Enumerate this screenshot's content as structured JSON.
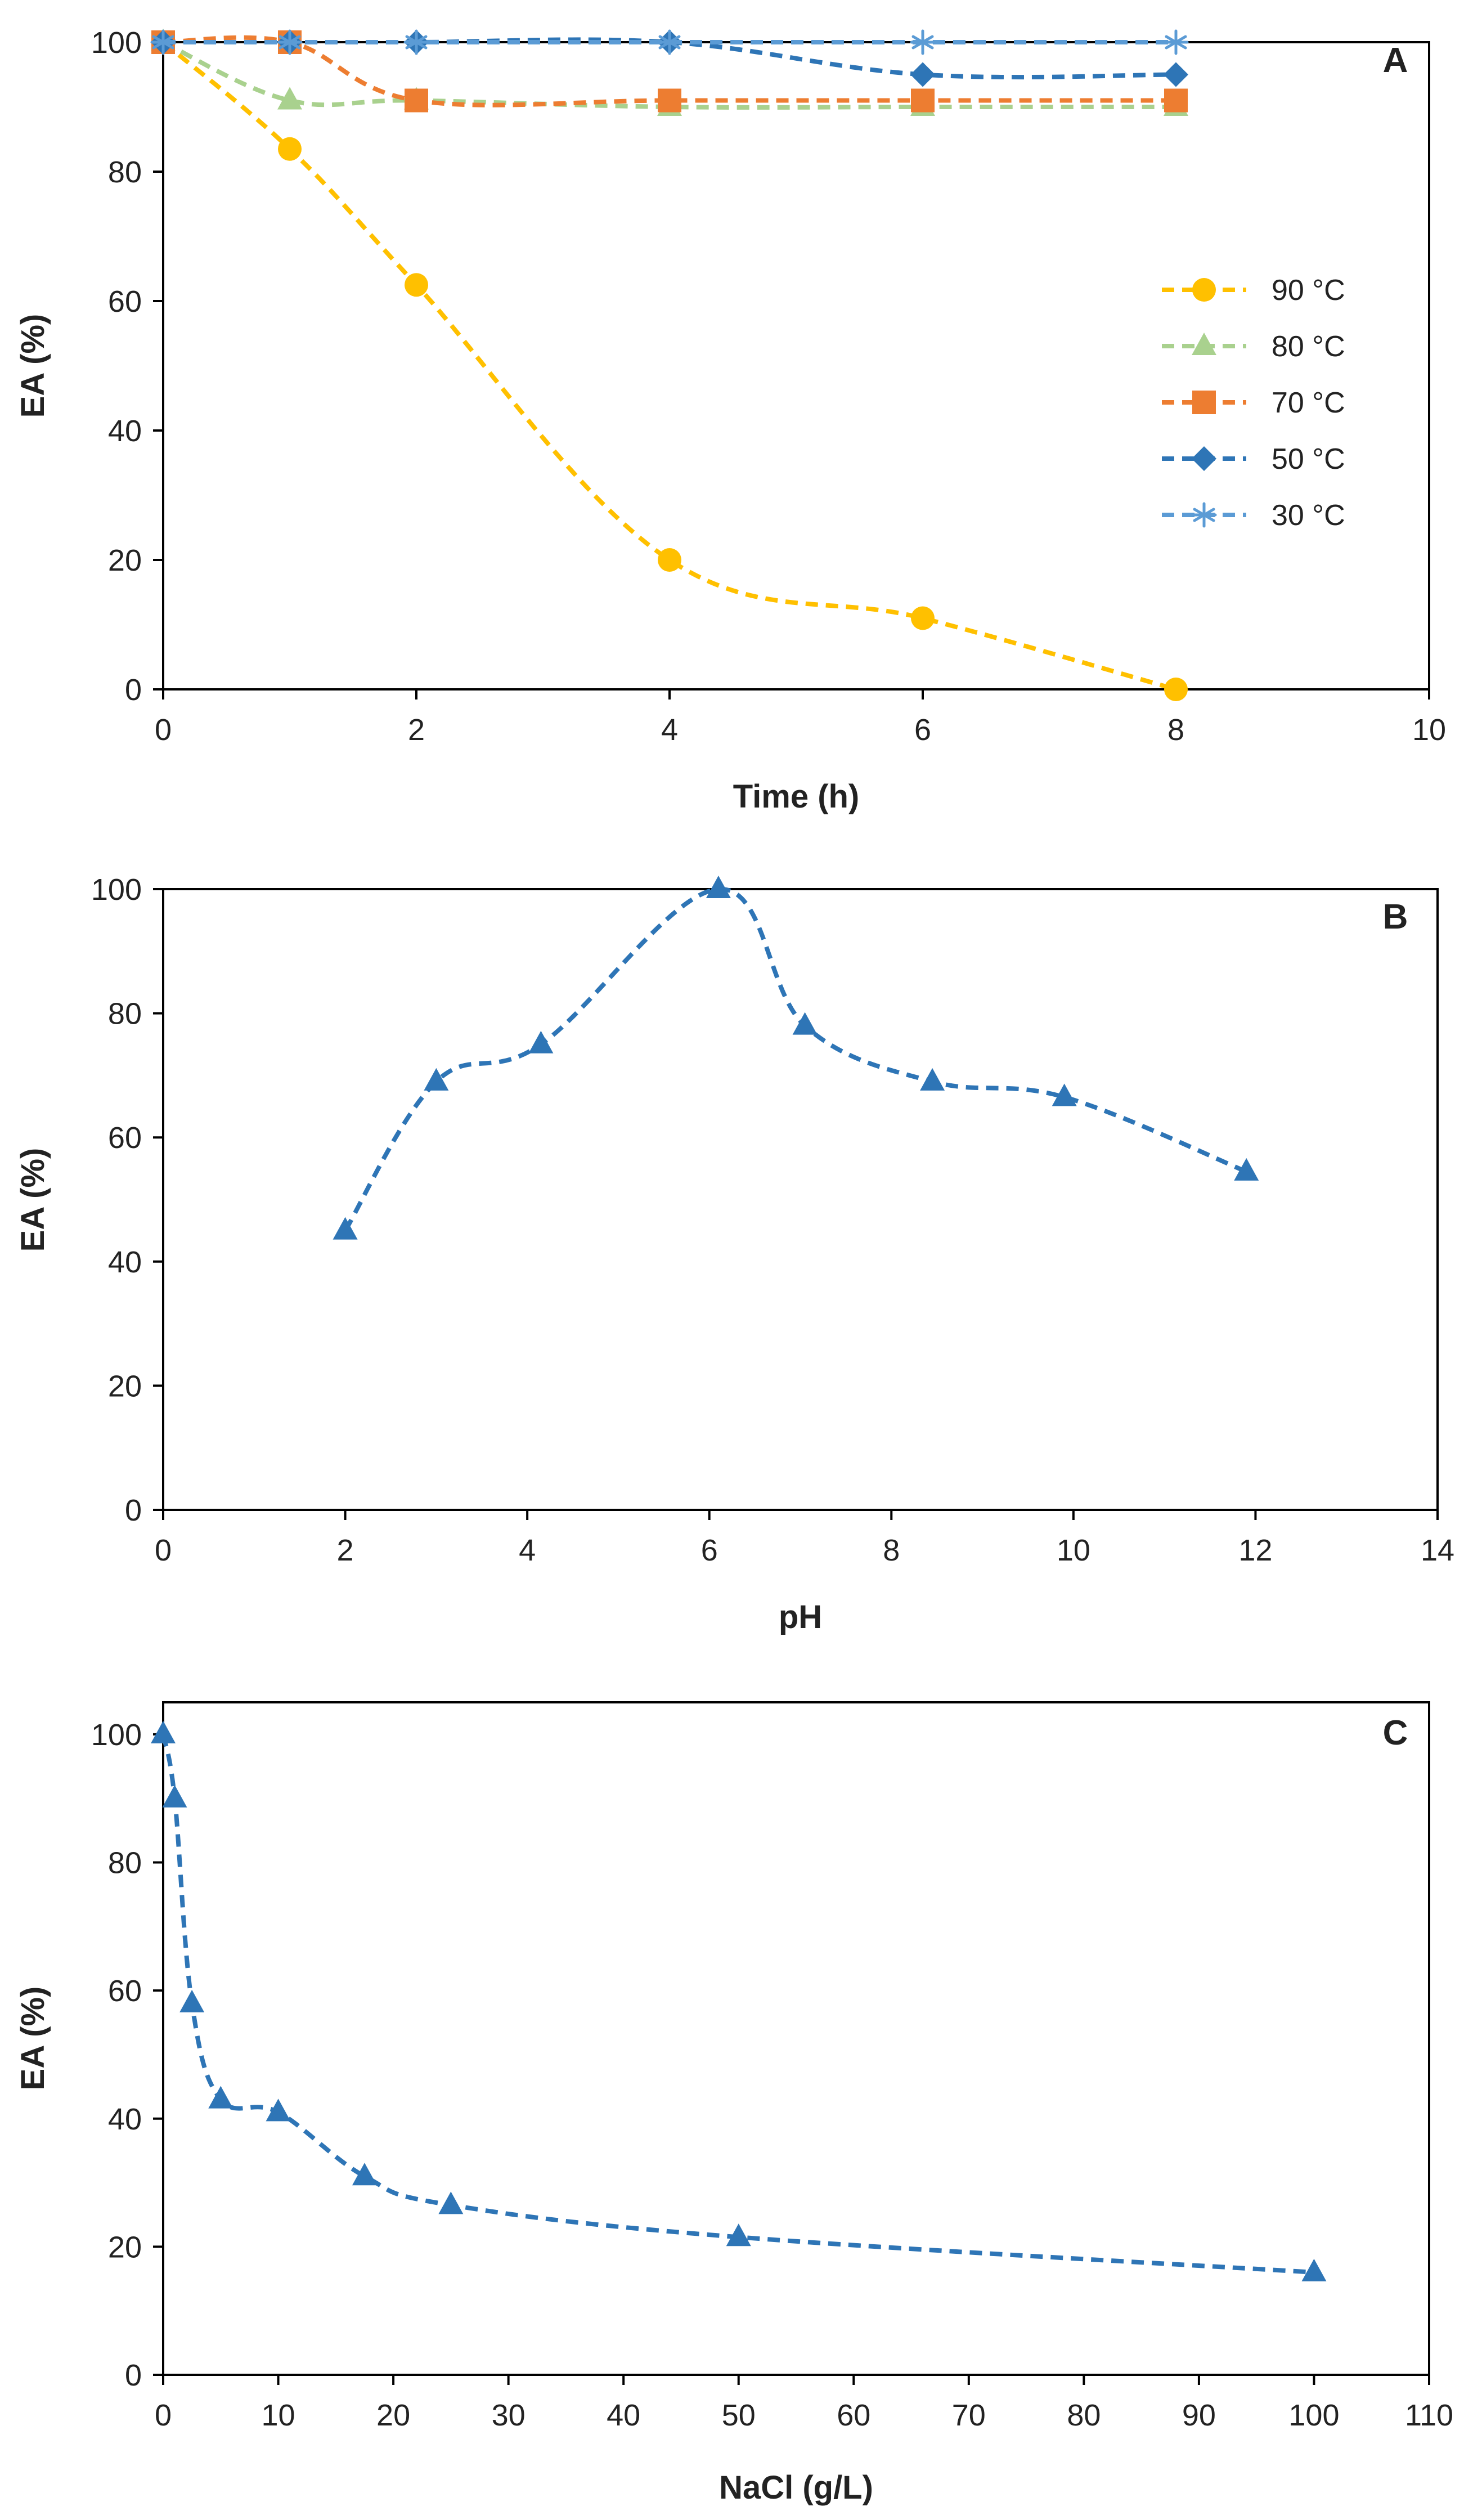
{
  "chart_data": [
    {
      "panel": "A",
      "type": "line",
      "title": "",
      "xlabel": "Time (h)",
      "ylabel": "EA (%)",
      "xlim": [
        0,
        10
      ],
      "ylim": [
        0,
        100
      ],
      "xticks": [
        0,
        2,
        4,
        6,
        8,
        10
      ],
      "yticks": [
        0,
        20,
        40,
        60,
        80,
        100
      ],
      "grid": false,
      "legend_position": "right-middle",
      "series": [
        {
          "name": "90 °C",
          "marker": "circle",
          "color": "#FFC000",
          "x": [
            0,
            1,
            2,
            4,
            6,
            8
          ],
          "values": [
            100,
            83.5,
            62.5,
            20,
            11,
            0
          ]
        },
        {
          "name": "80 °C",
          "marker": "triangle",
          "color": "#A9D18E",
          "x": [
            0,
            1,
            2,
            4,
            6,
            8
          ],
          "values": [
            100,
            91,
            91,
            90,
            90,
            90
          ]
        },
        {
          "name": "70 °C",
          "marker": "square",
          "color": "#ED7D31",
          "x": [
            0,
            1,
            2,
            4,
            6,
            8
          ],
          "values": [
            100,
            100,
            91,
            91,
            91,
            91
          ]
        },
        {
          "name": "50 °C",
          "marker": "diamond",
          "color": "#2E75B6",
          "x": [
            0,
            1,
            2,
            4,
            6,
            8
          ],
          "values": [
            100,
            100,
            100,
            100,
            95,
            95
          ]
        },
        {
          "name": "30 °C",
          "marker": "asterisk",
          "color": "#5B9BD5",
          "x": [
            0,
            1,
            2,
            4,
            6,
            8
          ],
          "values": [
            100,
            100,
            100,
            100,
            100,
            100
          ]
        }
      ]
    },
    {
      "panel": "B",
      "type": "line",
      "title": "",
      "xlabel": "pH",
      "ylabel": "EA (%)",
      "xlim": [
        0,
        14
      ],
      "ylim": [
        0,
        100
      ],
      "xticks": [
        0,
        2,
        4,
        6,
        8,
        10,
        12,
        14
      ],
      "yticks": [
        0,
        20,
        40,
        60,
        80,
        100
      ],
      "grid": false,
      "series": [
        {
          "name": "pH",
          "marker": "triangle",
          "color": "#2E75B6",
          "x": [
            2,
            3,
            4.15,
            6.1,
            7.05,
            8.45,
            9.9,
            11.9
          ],
          "values": [
            45,
            69,
            75,
            100,
            78,
            69,
            66.5,
            54.5
          ]
        }
      ]
    },
    {
      "panel": "C",
      "type": "line",
      "title": "",
      "xlabel": "NaCl (g/L)",
      "ylabel": "EA (%)",
      "xlim": [
        0,
        110
      ],
      "ylim": [
        0,
        105
      ],
      "xticks": [
        0,
        10,
        20,
        30,
        40,
        50,
        60,
        70,
        80,
        90,
        100,
        110
      ],
      "yticks": [
        0,
        20,
        40,
        60,
        80,
        100
      ],
      "grid": false,
      "series": [
        {
          "name": "NaCl",
          "marker": "triangle",
          "color": "#2E75B6",
          "x": [
            0,
            1,
            2.5,
            5,
            10,
            17.5,
            25,
            50,
            100
          ],
          "values": [
            100,
            90,
            58,
            43,
            41,
            31,
            26.5,
            21.5,
            16
          ]
        }
      ]
    }
  ]
}
